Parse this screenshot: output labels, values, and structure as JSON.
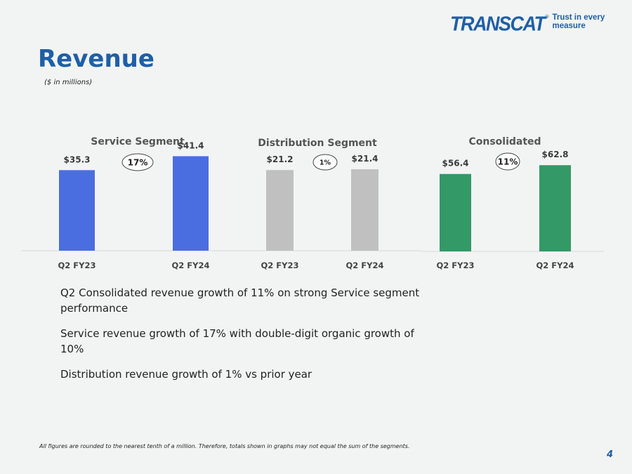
{
  "brand": {
    "logo_text": "TRANSCAT",
    "logo_reg": "®",
    "tagline": "Trust in every measure",
    "color": "#1f5fa6"
  },
  "page": {
    "title": "Revenue",
    "subtitle": "($ in millions)",
    "page_number": "4",
    "footnote": "All figures are rounded to the nearest tenth of a million. Therefore, totals shown in graphs may not equal the sum of the segments."
  },
  "bullets": [
    "Q2 Consolidated revenue growth of 11% on strong Service segment performance",
    "Service revenue growth of 17% with double-digit organic growth of 10%",
    "Distribution revenue growth of 1% vs prior year"
  ],
  "chart_data": [
    {
      "type": "bar",
      "title": "Service Segment",
      "categories": [
        "Q2 FY23",
        "Q2 FY24"
      ],
      "values": [
        35.3,
        41.4
      ],
      "labels": [
        "$35.3",
        "$41.4"
      ],
      "growth": "17%",
      "color": "#4a6ee0",
      "ylim": [
        0,
        80
      ]
    },
    {
      "type": "bar",
      "title": "Distribution Segment",
      "categories": [
        "Q2 FY23",
        "Q2 FY24"
      ],
      "values": [
        21.2,
        21.4
      ],
      "labels": [
        "$21.2",
        "$21.4"
      ],
      "growth": "1%",
      "color": "#c0c0c0",
      "ylim": [
        0,
        48
      ]
    },
    {
      "type": "bar",
      "title": "Consolidated",
      "categories": [
        "Q2 FY23",
        "Q2 FY24"
      ],
      "values": [
        56.4,
        62.8
      ],
      "labels": [
        "$56.4",
        "$62.8"
      ],
      "growth": "11%",
      "color": "#339966",
      "ylim": [
        0,
        133
      ]
    }
  ]
}
